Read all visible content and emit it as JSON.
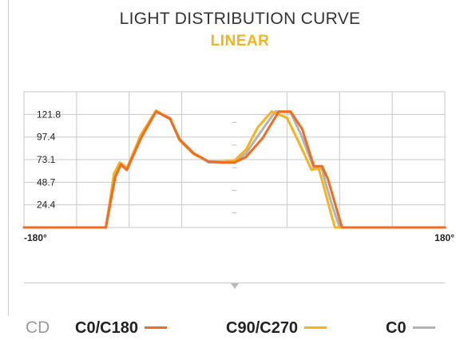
{
  "header": {
    "title": "LIGHT DISTRIBUTION CURVE",
    "subtitle": "LINEAR"
  },
  "colors": {
    "c0_c180": "#f26b21",
    "c90_c270": "#f7b21d",
    "c0": "#b3b3b3",
    "subtitle": "#f7b21d",
    "grid": "#c8c8c8"
  },
  "legend": {
    "unit": "CD",
    "items": [
      {
        "label": "C0/C180",
        "color": "#f26b21"
      },
      {
        "label": "C90/C270",
        "color": "#f7b21d"
      },
      {
        "label": "C0",
        "color": "#b3b3b3"
      }
    ]
  },
  "chart_data": {
    "type": "line",
    "xlim": [
      -180,
      180
    ],
    "ylim": [
      0,
      146.2
    ],
    "x_tick_labels": {
      "min": "-180°",
      "max": "180°"
    },
    "y_tick_labels": [
      "24.4",
      "48.7",
      "73.1",
      "97.4",
      "121.8"
    ],
    "y_ticks": [
      24.4,
      48.7,
      73.1,
      97.4,
      121.8
    ],
    "grid": true,
    "series": [
      {
        "name": "C0",
        "color": "#b3b3b3",
        "x": [
          -180,
          -140,
          -127,
          -110,
          -103,
          -98,
          -92,
          -80,
          -67,
          -55,
          -47,
          -35,
          -22,
          -10,
          0,
          10,
          22,
          35,
          48,
          57,
          68,
          75,
          78,
          84,
          90,
          94,
          98,
          102,
          110,
          130,
          180
        ],
        "y": [
          0,
          0,
          0,
          0,
          54,
          68,
          62,
          98,
          125,
          118,
          95,
          80,
          70,
          70,
          71,
          80,
          102,
          125,
          124,
          100,
          64,
          63,
          48,
          22,
          0,
          0,
          0,
          0,
          0,
          0,
          0
        ]
      },
      {
        "name": "C90/C270",
        "color": "#f7b21d",
        "x": [
          -180,
          -140,
          -128,
          -110,
          -103,
          -98,
          -92,
          -80,
          -67,
          -55,
          -47,
          -35,
          -22,
          -10,
          0,
          10,
          20,
          32,
          45,
          55,
          66,
          72,
          76,
          82,
          86,
          90,
          94,
          100,
          110,
          130,
          180
        ],
        "y": [
          0,
          0,
          0,
          0,
          58,
          70,
          64,
          100,
          126,
          117,
          94,
          79,
          71,
          71,
          72,
          84,
          108,
          125,
          118,
          92,
          62,
          64,
          46,
          18,
          0,
          0,
          0,
          0,
          0,
          0,
          0
        ]
      },
      {
        "name": "C0/C180",
        "color": "#f26b21",
        "x": [
          -180,
          -140,
          -126,
          -110,
          -102,
          -97,
          -92,
          -80,
          -67,
          -55,
          -47,
          -35,
          -22,
          -10,
          0,
          10,
          24,
          38,
          48,
          58,
          68,
          75,
          80,
          86,
          92,
          96,
          100,
          110,
          130,
          180
        ],
        "y": [
          0,
          0,
          0,
          0,
          54,
          68,
          62,
          96,
          125,
          117,
          95,
          80,
          71,
          70,
          70,
          76,
          96,
          125,
          125,
          106,
          66,
          66,
          52,
          26,
          0,
          0,
          0,
          0,
          0,
          0
        ]
      }
    ]
  }
}
